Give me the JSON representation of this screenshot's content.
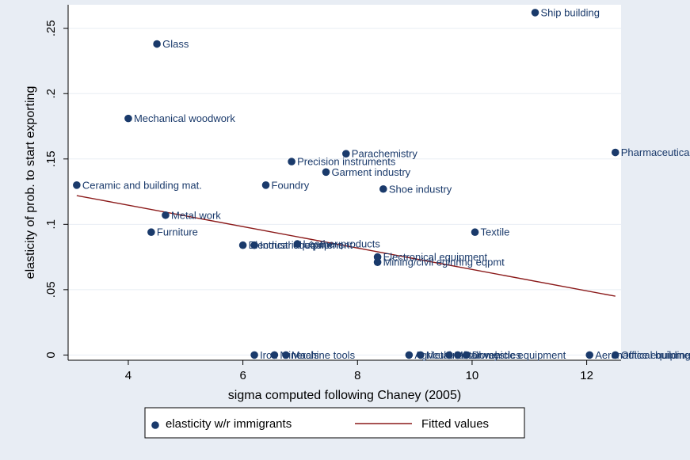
{
  "chart_data": {
    "type": "scatter",
    "xlabel": "sigma computed following Chaney (2005)",
    "ylabel": "elasticity of prob. to start exporting",
    "xlim": [
      2.95,
      12.6
    ],
    "ylim": [
      -0.004,
      0.268
    ],
    "x_ticks": [
      {
        "v": 4,
        "label": "4"
      },
      {
        "v": 6,
        "label": "6"
      },
      {
        "v": 8,
        "label": "8"
      },
      {
        "v": 10,
        "label": "10"
      },
      {
        "v": 12,
        "label": "12"
      }
    ],
    "y_ticks": [
      {
        "v": 0,
        "label": "0"
      },
      {
        "v": 0.05,
        "label": ".05"
      },
      {
        "v": 0.1,
        "label": ".1"
      },
      {
        "v": 0.15,
        "label": ".15"
      },
      {
        "v": 0.2,
        "label": ".2"
      },
      {
        "v": 0.25,
        "label": ".25"
      }
    ],
    "grid": "horizontal",
    "legend": {
      "placement": "bottom",
      "entries": [
        {
          "label": "elasticity w/r immigrants",
          "kind": "marker"
        },
        {
          "label": "Fitted values",
          "kind": "line"
        }
      ]
    },
    "colors": {
      "plot_background": "#ffffff",
      "outer_background": "#e8edf4",
      "marker": "#1a3a6b",
      "fitted_line": "#8b1a1a",
      "grid": "#e8edf4"
    },
    "points": [
      {
        "label": "Ship building",
        "x": 11.1,
        "y": 0.262
      },
      {
        "label": "Glass",
        "x": 4.5,
        "y": 0.238
      },
      {
        "label": "Mechanical woodwork",
        "x": 4.0,
        "y": 0.181
      },
      {
        "label": "Pharmaceuticals",
        "x": 12.5,
        "y": 0.155
      },
      {
        "label": "Parachemistry",
        "x": 7.8,
        "y": 0.154
      },
      {
        "label": "Precision instruments",
        "x": 6.85,
        "y": 0.148
      },
      {
        "label": "Garment industry",
        "x": 7.45,
        "y": 0.14
      },
      {
        "label": "Ceramic and building mat.",
        "x": 3.1,
        "y": 0.13
      },
      {
        "label": "Foundry",
        "x": 6.4,
        "y": 0.13
      },
      {
        "label": "Shoe industry",
        "x": 8.45,
        "y": 0.127
      },
      {
        "label": "Metal work",
        "x": 4.65,
        "y": 0.107
      },
      {
        "label": "Furniture",
        "x": 4.4,
        "y": 0.094
      },
      {
        "label": "Textile",
        "x": 10.05,
        "y": 0.094
      },
      {
        "label": "Electrical equipment",
        "x": 6.0,
        "y": 0.084
      },
      {
        "label": "Industrial equipment",
        "x": 6.2,
        "y": 0.084
      },
      {
        "label": "Leather products",
        "x": 6.95,
        "y": 0.085
      },
      {
        "label": "Electronical equipment",
        "x": 8.35,
        "y": 0.075
      },
      {
        "label": "Mining/civil eginring eqpmt",
        "x": 8.35,
        "y": 0.071
      },
      {
        "label": "Iron",
        "x": 6.2,
        "y": 0.0
      },
      {
        "label": "Minerals",
        "x": 6.55,
        "y": 0.0
      },
      {
        "label": "Machine tools",
        "x": 6.75,
        "y": 0.0
      },
      {
        "label": "Agricultural",
        "x": 8.9,
        "y": 0.0
      },
      {
        "label": "Metal",
        "x": 9.1,
        "y": 0.0
      },
      {
        "label": "Motor vehicles",
        "x": 9.6,
        "y": 0.0
      },
      {
        "label": "Railway",
        "x": 9.75,
        "y": 0.0
      },
      {
        "label": "Domestic equipment",
        "x": 9.9,
        "y": 0.0
      },
      {
        "label": "Aeronautical building",
        "x": 12.05,
        "y": 0.0
      },
      {
        "label": "Office equipment",
        "x": 12.5,
        "y": 0.0
      }
    ],
    "fitted_line": {
      "x": [
        3.1,
        12.5
      ],
      "y": [
        0.122,
        0.045
      ]
    }
  }
}
